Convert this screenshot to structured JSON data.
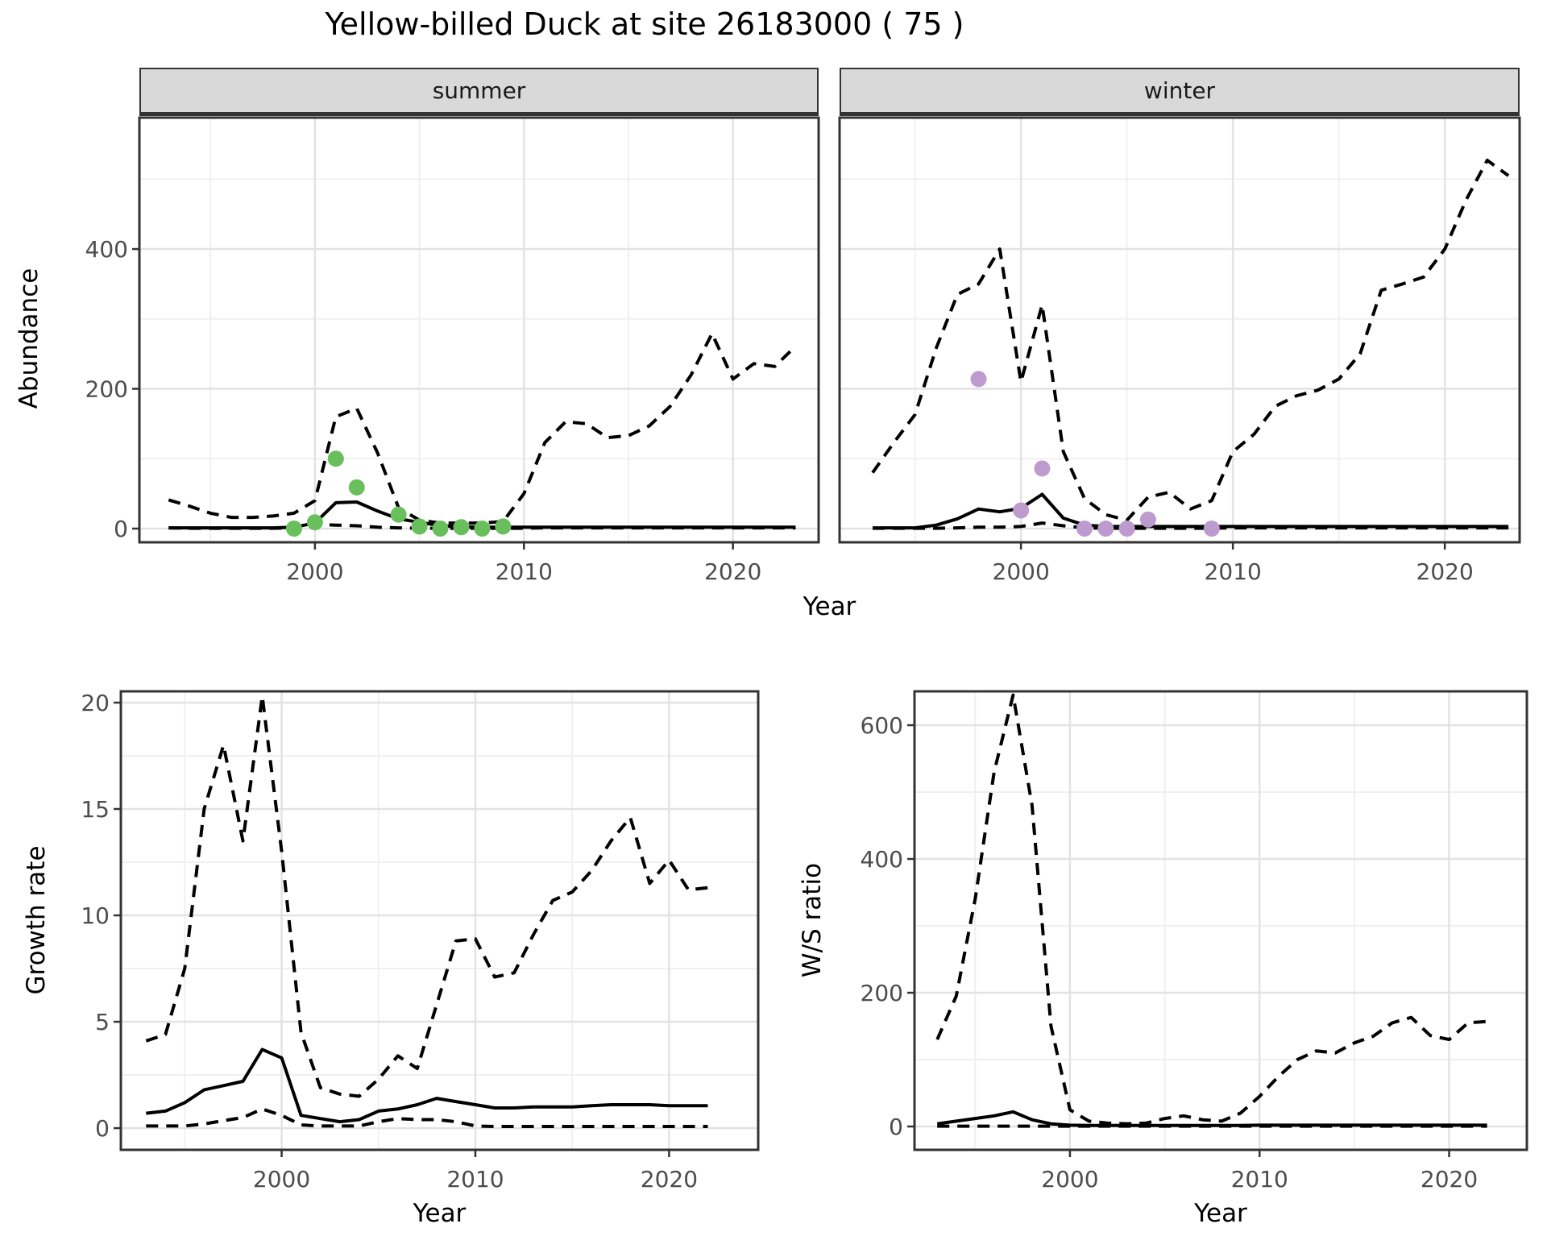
{
  "title": "Yellow-billed Duck at site 26183000 ( 75 )",
  "facets": {
    "summer": "summer",
    "winter": "winter"
  },
  "axis_titles": {
    "x_top": "Year",
    "x_bottom_left": "Year",
    "x_bottom_right": "Year",
    "y_top": "Abundance",
    "y_bottom_left": "Growth rate",
    "y_bottom_right": "W/S ratio"
  },
  "colors": {
    "summer_point": "#68bf5b",
    "winter_point": "#bd9bce",
    "line": "#000000",
    "grid_major": "#e3e3e3",
    "grid_minor": "#f0f0f0",
    "panel_border": "#333333",
    "tick_text": "#4d4d4d",
    "strip_bg": "#d9d9d9"
  },
  "chart_data": [
    {
      "id": "abundance_summer",
      "type": "line+scatter",
      "facet": "summer",
      "ylabel": "Abundance",
      "xlabel": "Year",
      "xlim": [
        1991.6,
        2024.1
      ],
      "ylim": [
        -19.6,
        588
      ],
      "x_ticks": {
        "values": [
          2000,
          2010,
          2020
        ],
        "labels": [
          "2000",
          "2010",
          "2020"
        ]
      },
      "y_ticks": {
        "values": [
          0,
          200,
          400
        ],
        "labels": [
          "0",
          "200",
          "400"
        ]
      },
      "x_minor": [
        1995,
        2005,
        2015
      ],
      "y_minor": [
        100,
        300,
        500
      ],
      "show_y_labels": true,
      "x": [
        1993,
        1994,
        1995,
        1996,
        1997,
        1998,
        1999,
        2000,
        2001,
        2002,
        2003,
        2004,
        2005,
        2006,
        2007,
        2008,
        2009,
        2010,
        2011,
        2012,
        2013,
        2014,
        2015,
        2016,
        2017,
        2018,
        2019,
        2020,
        2021,
        2022,
        2023
      ],
      "series": [
        {
          "name": "median",
          "style": "solid",
          "values": [
            1,
            1,
            1,
            1,
            1,
            1,
            2,
            8,
            37,
            38,
            25,
            14,
            9,
            4,
            2.5,
            2,
            2,
            2,
            2,
            2,
            2,
            2,
            2,
            2,
            2,
            2,
            2,
            2,
            2,
            2,
            2
          ]
        },
        {
          "name": "upper_ci",
          "style": "dashed",
          "values": [
            41,
            32,
            22,
            16,
            16,
            18,
            22,
            40,
            160,
            172,
            108,
            30,
            12,
            8,
            8,
            8,
            10,
            50,
            123,
            153,
            150,
            130,
            133,
            147,
            175,
            220,
            279,
            214,
            236,
            232,
            261
          ]
        },
        {
          "name": "lower_ci",
          "style": "dashed",
          "values": [
            1,
            0.5,
            0.5,
            0.5,
            0.5,
            0.5,
            1,
            6,
            5,
            4,
            2,
            1,
            0.5,
            0.5,
            0.5,
            0.5,
            0.5,
            0.5,
            1,
            1,
            1,
            1,
            1,
            1,
            1,
            1,
            1,
            1,
            1,
            1,
            1
          ]
        }
      ],
      "points": {
        "color_key": "summer_point",
        "years": [
          1999,
          2000,
          2001,
          2002,
          2004,
          2005,
          2006,
          2007,
          2008,
          2009
        ],
        "values": [
          0,
          9,
          100,
          59,
          20,
          3,
          0,
          2,
          0,
          3
        ]
      }
    },
    {
      "id": "abundance_winter",
      "type": "line+scatter",
      "facet": "winter",
      "ylabel": "Abundance",
      "xlabel": "Year",
      "xlim": [
        1991.44,
        2023.53
      ],
      "ylim": [
        -19.6,
        588
      ],
      "x_ticks": {
        "values": [
          2000,
          2010,
          2020
        ],
        "labels": [
          "2000",
          "2010",
          "2020"
        ]
      },
      "y_ticks": {
        "values": [
          0,
          200,
          400
        ],
        "labels": [
          "0",
          "200",
          "400"
        ]
      },
      "x_minor": [
        1995,
        2005,
        2015
      ],
      "y_minor": [
        100,
        300,
        500
      ],
      "show_y_labels": false,
      "x": [
        1993,
        1994,
        1995,
        1996,
        1997,
        1998,
        1999,
        2000,
        2001,
        2002,
        2003,
        2004,
        2005,
        2006,
        2007,
        2008,
        2009,
        2010,
        2011,
        2012,
        2013,
        2014,
        2015,
        2016,
        2017,
        2018,
        2019,
        2020,
        2021,
        2022,
        2023
      ],
      "series": [
        {
          "name": "median",
          "style": "solid",
          "values": [
            1,
            1,
            1,
            5,
            14,
            28,
            24,
            29,
            49,
            15,
            5,
            3,
            3,
            3,
            3,
            3,
            3,
            3,
            3,
            3,
            3,
            3,
            3,
            3,
            3,
            3,
            3,
            3,
            3,
            3,
            3
          ]
        },
        {
          "name": "upper_ci",
          "style": "dashed",
          "values": [
            80,
            123,
            163,
            258,
            335,
            350,
            400,
            210,
            320,
            110,
            43,
            20,
            12,
            45,
            52,
            28,
            40,
            110,
            135,
            175,
            190,
            198,
            214,
            250,
            341,
            350,
            360,
            400,
            470,
            527,
            505
          ]
        },
        {
          "name": "lower_ci",
          "style": "dashed",
          "values": [
            0.5,
            0.5,
            0.5,
            0.5,
            1,
            2,
            2,
            3,
            8,
            4,
            1,
            0.5,
            0.5,
            0.5,
            0.5,
            0.5,
            0.5,
            1,
            1,
            1,
            1,
            1,
            1,
            1,
            1,
            1,
            1,
            1,
            1,
            1,
            1
          ]
        }
      ],
      "points": {
        "color_key": "winter_point",
        "years": [
          1998,
          2000,
          2001,
          2003,
          2004,
          2005,
          2006,
          2009
        ],
        "values": [
          214,
          26,
          86,
          0,
          0,
          0,
          13,
          0
        ]
      }
    },
    {
      "id": "growth_rate",
      "type": "line",
      "ylabel": "Growth rate",
      "xlabel": "Year",
      "xlim": [
        1991.7,
        2024.6
      ],
      "ylim": [
        -1.02,
        20.53
      ],
      "x_ticks": {
        "values": [
          2000,
          2010,
          2020
        ],
        "labels": [
          "2000",
          "2010",
          "2020"
        ]
      },
      "y_ticks": {
        "values": [
          0,
          5,
          10,
          15,
          20
        ],
        "labels": [
          "0",
          "5",
          "10",
          "15",
          "20"
        ]
      },
      "x_minor": [
        1995,
        2005,
        2015
      ],
      "y_minor": [
        2.5,
        7.5,
        12.5,
        17.5
      ],
      "show_y_labels": true,
      "x": [
        1993,
        1994,
        1995,
        1996,
        1997,
        1998,
        1999,
        2000,
        2001,
        2002,
        2003,
        2004,
        2005,
        2006,
        2007,
        2008,
        2009,
        2010,
        2011,
        2012,
        2013,
        2014,
        2015,
        2016,
        2017,
        2018,
        2019,
        2020,
        2021,
        2022
      ],
      "series": [
        {
          "name": "median",
          "style": "solid",
          "values": [
            0.7,
            0.8,
            1.2,
            1.8,
            2.0,
            2.2,
            3.7,
            3.3,
            0.6,
            0.45,
            0.3,
            0.4,
            0.8,
            0.9,
            1.1,
            1.4,
            1.25,
            1.1,
            0.95,
            0.95,
            1.0,
            1.0,
            1.0,
            1.05,
            1.1,
            1.1,
            1.1,
            1.05,
            1.05,
            1.05
          ]
        },
        {
          "name": "upper_ci",
          "style": "dashed",
          "values": [
            4.1,
            4.4,
            7.5,
            15,
            18,
            13.5,
            20.3,
            13,
            4.5,
            1.9,
            1.6,
            1.5,
            2.3,
            3.4,
            2.8,
            5.8,
            8.8,
            8.9,
            7.1,
            7.3,
            9.1,
            10.7,
            11.1,
            12.1,
            13.5,
            14.6,
            11.5,
            12.6,
            11.2,
            11.3
          ]
        },
        {
          "name": "lower_ci",
          "style": "dashed",
          "values": [
            0.1,
            0.1,
            0.1,
            0.2,
            0.35,
            0.5,
            0.9,
            0.6,
            0.15,
            0.1,
            0.1,
            0.1,
            0.3,
            0.45,
            0.4,
            0.4,
            0.3,
            0.1,
            0.08,
            0.08,
            0.08,
            0.08,
            0.08,
            0.08,
            0.08,
            0.08,
            0.08,
            0.08,
            0.08,
            0.08
          ]
        }
      ]
    },
    {
      "id": "ws_ratio",
      "type": "line",
      "ylabel": "W/S ratio",
      "xlabel": "Year",
      "xlim": [
        1991.8,
        2024.1
      ],
      "ylim": [
        -34.9,
        650.6
      ],
      "x_ticks": {
        "values": [
          2000,
          2010,
          2020
        ],
        "labels": [
          "2000",
          "2010",
          "2020"
        ]
      },
      "y_ticks": {
        "values": [
          0,
          200,
          400,
          600
        ],
        "labels": [
          "0",
          "200",
          "400",
          "600"
        ]
      },
      "x_minor": [
        1995,
        2005,
        2015
      ],
      "y_minor": [
        100,
        300,
        500
      ],
      "show_y_labels": true,
      "x": [
        1993,
        1994,
        1995,
        1996,
        1997,
        1998,
        1999,
        2000,
        2001,
        2002,
        2003,
        2004,
        2005,
        2006,
        2007,
        2008,
        2009,
        2010,
        2011,
        2012,
        2013,
        2014,
        2015,
        2016,
        2017,
        2018,
        2019,
        2020,
        2021,
        2022
      ],
      "series": [
        {
          "name": "median",
          "style": "solid",
          "values": [
            4,
            8,
            12,
            16,
            22,
            10,
            4,
            2,
            1.5,
            1.5,
            1.5,
            1.5,
            1.5,
            1.5,
            1.5,
            1.5,
            1.5,
            2,
            2,
            2,
            2,
            2,
            2,
            2,
            2,
            2,
            2,
            2,
            2,
            2
          ]
        },
        {
          "name": "upper_ci",
          "style": "dashed",
          "values": [
            130,
            195,
            340,
            530,
            645,
            480,
            150,
            25,
            8,
            5,
            4,
            5,
            12,
            16,
            10,
            8,
            20,
            45,
            75,
            100,
            113,
            110,
            125,
            135,
            155,
            163,
            136,
            130,
            155,
            157
          ]
        },
        {
          "name": "lower_ci",
          "style": "dashed",
          "values": [
            0.5,
            0.5,
            0.5,
            0.5,
            0.5,
            0.5,
            0.5,
            0.5,
            0.5,
            0.5,
            0.5,
            0.5,
            0.5,
            0.5,
            0.5,
            0.5,
            0.5,
            0.5,
            0.5,
            0.5,
            0.5,
            0.5,
            0.5,
            0.5,
            0.5,
            0.5,
            0.5,
            0.5,
            0.5,
            0.5
          ]
        }
      ]
    }
  ]
}
